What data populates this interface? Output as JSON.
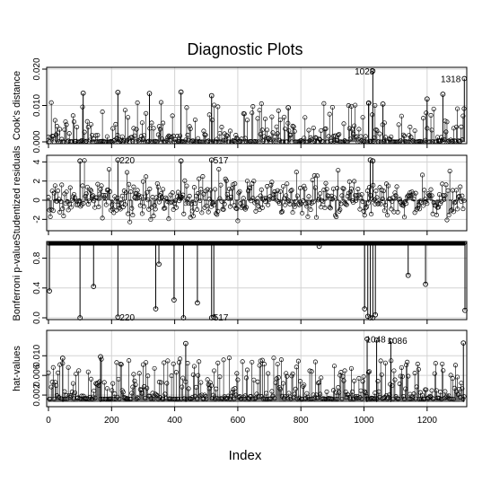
{
  "chart_data": {
    "type": "scatter",
    "title": "Diagnostic Plots",
    "xlabel": "Index",
    "xlim": [
      0,
      1320
    ],
    "x_ticks": [
      0,
      200,
      400,
      600,
      800,
      1000,
      1200
    ],
    "grid": true,
    "panels": [
      {
        "ylabel": "Cook's distance",
        "ylim": [
          0,
          0.02
        ],
        "y_ticks": [
          "0.000",
          "0.010",
          "0.020"
        ],
        "y_tick_values": [
          0,
          0.01,
          0.02
        ],
        "baseline": 0,
        "labels": [
          {
            "text": "1028",
            "x": 1028,
            "y": 0.0195
          },
          {
            "text": "1318",
            "x": 1318,
            "y": 0.0174
          }
        ],
        "highlights": [
          {
            "x": 110,
            "y": 0.0134
          },
          {
            "x": 220,
            "y": 0.0136
          },
          {
            "x": 320,
            "y": 0.0133
          },
          {
            "x": 420,
            "y": 0.0137
          },
          {
            "x": 517,
            "y": 0.0127
          },
          {
            "x": 760,
            "y": 0.0094
          },
          {
            "x": 1015,
            "y": 0.0107
          },
          {
            "x": 1028,
            "y": 0.0195
          },
          {
            "x": 1060,
            "y": 0.0104
          },
          {
            "x": 1200,
            "y": 0.0118
          },
          {
            "x": 1250,
            "y": 0.0131
          },
          {
            "x": 1318,
            "y": 0.0174
          }
        ]
      },
      {
        "ylabel": "Studentized residuals",
        "ylim": [
          -3,
          4.5
        ],
        "y_ticks": [
          "-2",
          "0",
          "2",
          "4"
        ],
        "y_tick_values": [
          -2,
          0,
          2,
          4
        ],
        "baseline": 0,
        "labels": [
          {
            "text": "220",
            "x": 220,
            "y": 4.2
          },
          {
            "text": "517",
            "x": 517,
            "y": 4.2
          }
        ],
        "highlights": [
          {
            "x": 220,
            "y": 4.2
          },
          {
            "x": 517,
            "y": 4.2
          },
          {
            "x": 1020,
            "y": 4.2
          },
          {
            "x": 1028,
            "y": 4.1
          },
          {
            "x": 100,
            "y": 4.1
          },
          {
            "x": 420,
            "y": 4.1
          }
        ]
      },
      {
        "ylabel": "Bonferroni p-value",
        "ylim": [
          0,
          1
        ],
        "y_ticks": [
          "0.0",
          "0.4",
          "0.8"
        ],
        "y_tick_values": [
          0,
          0.4,
          0.8
        ],
        "baseline": 1,
        "labels": [
          {
            "text": "220",
            "x": 220,
            "y": 0.01
          },
          {
            "text": "517",
            "x": 517,
            "y": 0.01
          }
        ],
        "highlights": [
          {
            "x": 3,
            "y": 0.36
          },
          {
            "x": 100,
            "y": 0.0
          },
          {
            "x": 143,
            "y": 0.42
          },
          {
            "x": 220,
            "y": 0.01
          },
          {
            "x": 340,
            "y": 0.12
          },
          {
            "x": 350,
            "y": 0.72
          },
          {
            "x": 398,
            "y": 0.24
          },
          {
            "x": 428,
            "y": 0.0
          },
          {
            "x": 472,
            "y": 0.2
          },
          {
            "x": 517,
            "y": 0.0
          },
          {
            "x": 524,
            "y": 0.01
          },
          {
            "x": 858,
            "y": 0.96
          },
          {
            "x": 1002,
            "y": 0.12
          },
          {
            "x": 1012,
            "y": 0.02
          },
          {
            "x": 1020,
            "y": 0.0
          },
          {
            "x": 1028,
            "y": 0.0
          },
          {
            "x": 1036,
            "y": 0.04
          },
          {
            "x": 1140,
            "y": 0.57
          },
          {
            "x": 1195,
            "y": 0.45
          },
          {
            "x": 1320,
            "y": 0.1
          }
        ]
      },
      {
        "ylabel": "hat-values",
        "ylim": [
          0,
          0.0148
        ],
        "y_ticks": [
          "0.002",
          "0.006",
          "0.010"
        ],
        "y_tick_values": [
          0.002,
          0.006,
          0.01
        ],
        "baseline": 0.0006,
        "labels": [
          {
            "text": "1048",
            "x": 1000,
            "y": 0.0134
          },
          {
            "text": "1086",
            "x": 1068,
            "y": 0.0132
          }
        ],
        "highlights": [
          {
            "x": 45,
            "y": 0.0095
          },
          {
            "x": 165,
            "y": 0.0098
          },
          {
            "x": 435,
            "y": 0.0125
          },
          {
            "x": 1010,
            "y": 0.0134
          },
          {
            "x": 1040,
            "y": 0.0132
          },
          {
            "x": 1085,
            "y": 0.013
          },
          {
            "x": 1315,
            "y": 0.0126
          }
        ]
      }
    ]
  }
}
